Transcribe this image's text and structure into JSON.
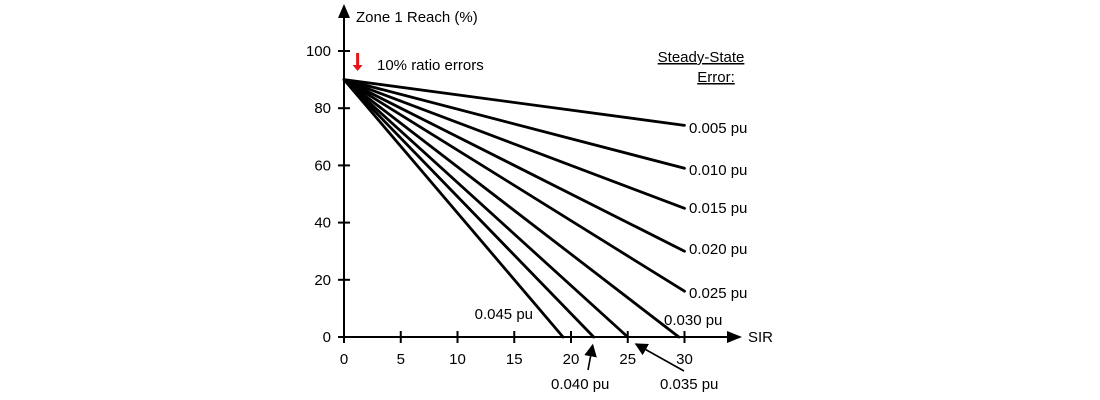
{
  "chart_data": {
    "type": "line",
    "title": "",
    "xlabel": "SIR",
    "ylabel": "Zone 1 Reach (%)",
    "xlim": [
      0,
      30
    ],
    "ylim": [
      0,
      100
    ],
    "x_ticks": [
      0,
      5,
      10,
      15,
      20,
      25,
      30
    ],
    "y_ticks": [
      0,
      20,
      40,
      60,
      80,
      100
    ],
    "x_tick_labels": [
      "0",
      "5",
      "10",
      "15",
      "20",
      "25",
      "30"
    ],
    "y_tick_labels": [
      "0",
      "20",
      "40",
      "60",
      "80",
      "100"
    ],
    "grid": false,
    "legend": {
      "title_line1": "Steady-State",
      "title_line2": "Error:",
      "placement": "right"
    },
    "annotation": {
      "text": "10% ratio errors",
      "x": 1.2,
      "y": 93,
      "color": "#e8141b"
    },
    "series": [
      {
        "name": "0.005 pu",
        "x": [
          0,
          30
        ],
        "y": [
          90,
          74
        ]
      },
      {
        "name": "0.010 pu",
        "x": [
          0,
          30
        ],
        "y": [
          90,
          59
        ]
      },
      {
        "name": "0.015 pu",
        "x": [
          0,
          30
        ],
        "y": [
          90,
          45
        ]
      },
      {
        "name": "0.020 pu",
        "x": [
          0,
          30
        ],
        "y": [
          90,
          30
        ]
      },
      {
        "name": "0.025 pu",
        "x": [
          0,
          30
        ],
        "y": [
          90,
          16
        ]
      },
      {
        "name": "0.030 pu",
        "x": [
          0,
          29.5
        ],
        "y": [
          90,
          0
        ]
      },
      {
        "name": "0.035 pu",
        "x": [
          0,
          25
        ],
        "y": [
          90,
          0
        ]
      },
      {
        "name": "0.040 pu",
        "x": [
          0,
          22
        ],
        "y": [
          90,
          0
        ]
      },
      {
        "name": "0.045 pu",
        "x": [
          0,
          19.3
        ],
        "y": [
          90,
          0
        ]
      }
    ]
  }
}
